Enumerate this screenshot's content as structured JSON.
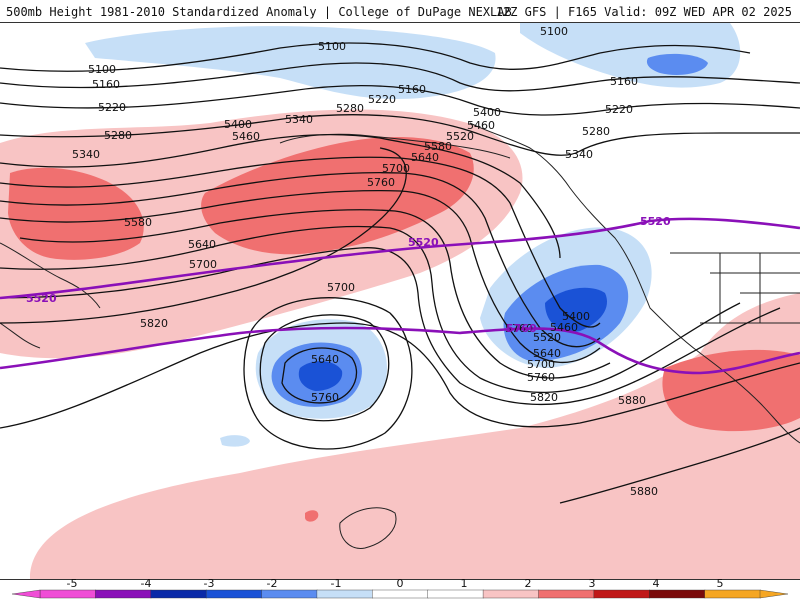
{
  "header": {
    "title": "500mb Height 1981-2010 Standardized Anomaly | College of DuPage NEXLAB",
    "run_info": "12Z GFS | F165 Valid: 09Z WED APR 02 2025"
  },
  "map": {
    "height_contour_labels": [
      "5100",
      "5100",
      "5100",
      "5160",
      "5160",
      "5160",
      "5220",
      "5220",
      "5220",
      "5280",
      "5280",
      "5280",
      "5340",
      "5340",
      "5340",
      "5400",
      "5400",
      "5400",
      "5460",
      "5460",
      "5460",
      "5520",
      "5520",
      "5580",
      "5580",
      "5640",
      "5640",
      "5640",
      "5640",
      "5700",
      "5700",
      "5700",
      "5700",
      "5760",
      "5760",
      "5760",
      "5760",
      "5820",
      "5820",
      "5880",
      "5880"
    ],
    "highlight_contour_labels": [
      "5520",
      "5520",
      "5520",
      "5760"
    ],
    "colors": {
      "neg_light": "#c6dff7",
      "neg_mid": "#5b8cf0",
      "neg_strong": "#1a52d6",
      "pos_light": "#f8c4c4",
      "pos_mid": "#f07070",
      "contour": "#111111",
      "highlight_contour": "#8a10b8",
      "coastline": "#222222"
    }
  },
  "colorbar": {
    "ticks": [
      "-5",
      "-4",
      "-3",
      "-2",
      "-1",
      "0",
      "1",
      "2",
      "3",
      "4",
      "5"
    ],
    "colors": [
      "#f04dd6",
      "#8a10b8",
      "#0a2aa8",
      "#1a52d6",
      "#5b8cf0",
      "#c6dff7",
      "#ffffff",
      "#ffffff",
      "#f8c4c4",
      "#f07070",
      "#c01818",
      "#7a0a0a",
      "#f5a623"
    ]
  }
}
